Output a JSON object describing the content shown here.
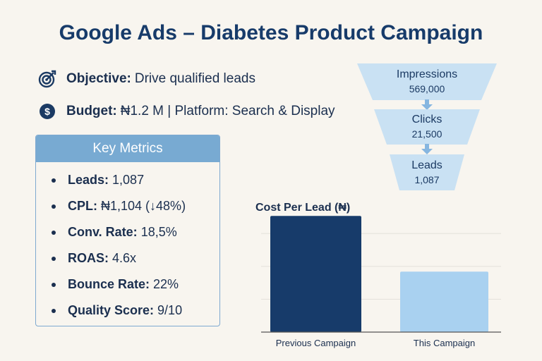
{
  "title": "Google Ads – Diabetes Product Campaign",
  "objective": {
    "label": "Objective:",
    "value": "Drive qualified leads",
    "icon": "target-icon"
  },
  "budget": {
    "label": "Budget:",
    "value": "₦1.2 M | Platform: Search & Display",
    "icon": "dollar-icon"
  },
  "key_metrics": {
    "header": "Key Metrics",
    "items": [
      {
        "label": "Leads:",
        "value": "1,087"
      },
      {
        "label": "CPL:",
        "value": "₦1,104 (↓48%)"
      },
      {
        "label": "Conv. Rate:",
        "value": "18,5%"
      },
      {
        "label": "ROAS:",
        "value": "4.6x"
      },
      {
        "label": "Bounce Rate:",
        "value": "22%"
      },
      {
        "label": "Quality Score:",
        "value": "9/10"
      }
    ]
  },
  "funnel": [
    {
      "label": "Impressions",
      "value": "569,000"
    },
    {
      "label": "Clicks",
      "value": "21,500"
    },
    {
      "label": "Leads",
      "value": "1,087"
    }
  ],
  "colors": {
    "title": "#173b6a",
    "previous_bar": "#173b6a",
    "this_bar": "#a9d1f0",
    "funnel_fill": "#c9e1f3",
    "metrics_header": "#78aad2"
  },
  "chart_data": {
    "type": "bar",
    "title": "Cost Per Lead (₦)",
    "categories": [
      "Previous Campaign",
      "This Campaign"
    ],
    "values": [
      2120,
      1104
    ],
    "ylim": [
      0,
      2200
    ],
    "grid": true,
    "xlabel": "",
    "ylabel": ""
  }
}
